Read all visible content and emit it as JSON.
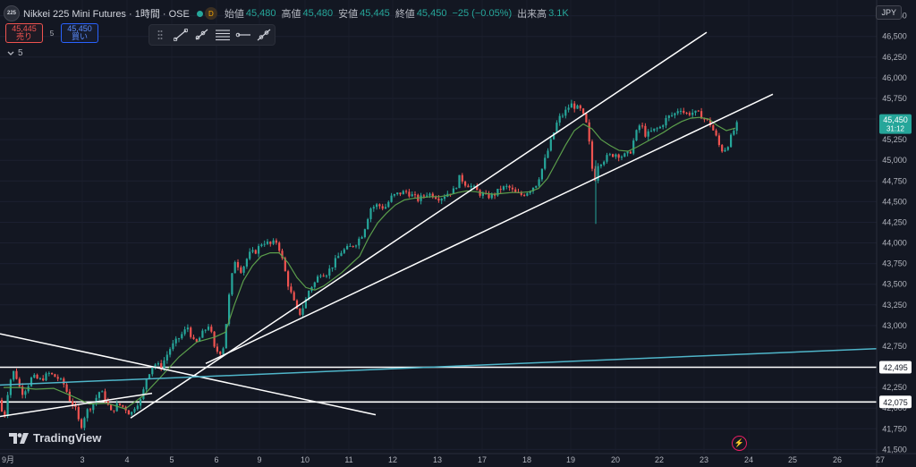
{
  "header": {
    "logo_text": "225",
    "title": "Nikkei 225 Mini Futures · 1時間 · OSE",
    "d_badge": "D",
    "open_label": "始値",
    "open_value": "45,480",
    "high_label": "高値",
    "high_value": "45,480",
    "low_label": "安値",
    "low_value": "45,445",
    "close_label": "終値",
    "close_value": "45,450",
    "change": "−25 (−0.05%)",
    "volume_label": "出来高",
    "volume_value": "3.1K"
  },
  "orders": {
    "sell_price": "45,445",
    "sell_label": "売り",
    "spread": "5",
    "buy_price": "45,450",
    "buy_label": "買い"
  },
  "indicators": {
    "toggle_icon": "chevron-down-icon",
    "count": "5"
  },
  "toolbar_icons": [
    "drag-handle-icon",
    "trend-line-icon",
    "ray-icon",
    "parallel-channel-icon",
    "horizontal-ray-icon",
    "extended-line-icon"
  ],
  "currency": "JPY",
  "brand": "TradingView",
  "colors": {
    "up": "#26a69a",
    "down": "#ef5350",
    "ma": "#5b9e4b",
    "trend": "#ffffff",
    "teal_line": "#4fb5c9",
    "background": "#131722"
  },
  "chart_data": {
    "type": "candlestick",
    "y_range": [
      41450,
      46800
    ],
    "y_ticks": [
      46750,
      46500,
      46250,
      46000,
      45750,
      45500,
      45250,
      45000,
      44750,
      44500,
      44250,
      44000,
      43750,
      43500,
      43250,
      43000,
      42750,
      42500,
      42250,
      42000,
      41750,
      41500
    ],
    "x_tick_labels": [
      "9月",
      "3",
      "4",
      "5",
      "6",
      "9",
      "10",
      "11",
      "12",
      "13",
      "17",
      "18",
      "19",
      "20",
      "22",
      "23",
      "24",
      "25",
      "26",
      "27"
    ],
    "last_price": {
      "label": "45,450",
      "countdown": "31:12",
      "value": 45450
    },
    "horizontal_levels": [
      {
        "label": "42,495",
        "value": 42495
      },
      {
        "label": "42,075",
        "value": 42075
      }
    ],
    "price_path": [
      [
        0,
        42100
      ],
      [
        4,
        41820
      ],
      [
        10,
        42300
      ],
      [
        16,
        42460
      ],
      [
        24,
        42180
      ],
      [
        30,
        42250
      ],
      [
        36,
        42380
      ],
      [
        45,
        42340
      ],
      [
        55,
        42420
      ],
      [
        65,
        42360
      ],
      [
        72,
        42280
      ],
      [
        78,
        42100
      ],
      [
        84,
        42000
      ],
      [
        90,
        41760
      ],
      [
        96,
        41950
      ],
      [
        104,
        42050
      ],
      [
        112,
        42220
      ],
      [
        118,
        42100
      ],
      [
        124,
        41950
      ],
      [
        132,
        42050
      ],
      [
        140,
        42000
      ],
      [
        146,
        41920
      ],
      [
        152,
        42050
      ],
      [
        158,
        42100
      ],
      [
        164,
        42380
      ],
      [
        172,
        42540
      ],
      [
        180,
        42500
      ],
      [
        190,
        42720
      ],
      [
        200,
        42850
      ],
      [
        210,
        42980
      ],
      [
        218,
        42760
      ],
      [
        226,
        42900
      ],
      [
        234,
        43020
      ],
      [
        240,
        42700
      ],
      [
        246,
        42680
      ],
      [
        250,
        42750
      ],
      [
        256,
        43350
      ],
      [
        262,
        43800
      ],
      [
        270,
        43660
      ],
      [
        278,
        43860
      ],
      [
        286,
        43900
      ],
      [
        294,
        44020
      ],
      [
        302,
        43980
      ],
      [
        310,
        44020
      ],
      [
        316,
        43780
      ],
      [
        322,
        43500
      ],
      [
        328,
        43300
      ],
      [
        334,
        43120
      ],
      [
        340,
        43250
      ],
      [
        346,
        43450
      ],
      [
        352,
        43520
      ],
      [
        358,
        43640
      ],
      [
        364,
        43620
      ],
      [
        370,
        43700
      ],
      [
        376,
        43800
      ],
      [
        382,
        43900
      ],
      [
        390,
        43940
      ],
      [
        398,
        44000
      ],
      [
        406,
        44120
      ],
      [
        414,
        44420
      ],
      [
        422,
        44460
      ],
      [
        430,
        44420
      ],
      [
        438,
        44560
      ],
      [
        446,
        44600
      ],
      [
        454,
        44620
      ],
      [
        460,
        44580
      ],
      [
        468,
        44520
      ],
      [
        476,
        44600
      ],
      [
        484,
        44580
      ],
      [
        492,
        44540
      ],
      [
        500,
        44600
      ],
      [
        508,
        44640
      ],
      [
        514,
        44800
      ],
      [
        520,
        44720
      ],
      [
        528,
        44680
      ],
      [
        536,
        44600
      ],
      [
        544,
        44560
      ],
      [
        552,
        44580
      ],
      [
        560,
        44660
      ],
      [
        568,
        44680
      ],
      [
        576,
        44600
      ],
      [
        584,
        44580
      ],
      [
        592,
        44640
      ],
      [
        600,
        44720
      ],
      [
        606,
        44900
      ],
      [
        612,
        45100
      ],
      [
        618,
        45300
      ],
      [
        624,
        45500
      ],
      [
        630,
        45560
      ],
      [
        638,
        45680
      ],
      [
        644,
        45640
      ],
      [
        650,
        45600
      ],
      [
        656,
        45420
      ],
      [
        660,
        45100
      ],
      [
        664,
        44700
      ],
      [
        668,
        44950
      ],
      [
        674,
        45000
      ],
      [
        680,
        45050
      ],
      [
        688,
        45080
      ],
      [
        696,
        45050
      ],
      [
        704,
        45080
      ],
      [
        710,
        45300
      ],
      [
        716,
        45450
      ],
      [
        722,
        45300
      ],
      [
        730,
        45360
      ],
      [
        738,
        45400
      ],
      [
        746,
        45520
      ],
      [
        754,
        45560
      ],
      [
        760,
        45640
      ],
      [
        766,
        45560
      ],
      [
        774,
        45580
      ],
      [
        782,
        45560
      ],
      [
        788,
        45500
      ],
      [
        794,
        45440
      ],
      [
        800,
        45300
      ],
      [
        806,
        45120
      ],
      [
        812,
        45150
      ],
      [
        818,
        45300
      ],
      [
        822,
        45400
      ],
      [
        825,
        45450
      ]
    ],
    "ma_path": [
      [
        4,
        42250
      ],
      [
        20,
        42250
      ],
      [
        40,
        42230
      ],
      [
        60,
        42240
      ],
      [
        80,
        42150
      ],
      [
        100,
        42050
      ],
      [
        120,
        42060
      ],
      [
        140,
        41990
      ],
      [
        160,
        42150
      ],
      [
        180,
        42380
      ],
      [
        200,
        42620
      ],
      [
        220,
        42800
      ],
      [
        240,
        42860
      ],
      [
        252,
        42920
      ],
      [
        262,
        43250
      ],
      [
        272,
        43540
      ],
      [
        282,
        43720
      ],
      [
        292,
        43840
      ],
      [
        302,
        43880
      ],
      [
        312,
        43880
      ],
      [
        322,
        43760
      ],
      [
        332,
        43580
      ],
      [
        342,
        43460
      ],
      [
        352,
        43430
      ],
      [
        362,
        43480
      ],
      [
        372,
        43560
      ],
      [
        382,
        43640
      ],
      [
        392,
        43740
      ],
      [
        402,
        43840
      ],
      [
        412,
        44060
      ],
      [
        422,
        44240
      ],
      [
        432,
        44360
      ],
      [
        442,
        44460
      ],
      [
        452,
        44520
      ],
      [
        462,
        44540
      ],
      [
        472,
        44550
      ],
      [
        482,
        44560
      ],
      [
        492,
        44560
      ],
      [
        502,
        44580
      ],
      [
        512,
        44610
      ],
      [
        522,
        44630
      ],
      [
        532,
        44620
      ],
      [
        542,
        44600
      ],
      [
        552,
        44590
      ],
      [
        562,
        44600
      ],
      [
        572,
        44610
      ],
      [
        582,
        44610
      ],
      [
        592,
        44620
      ],
      [
        602,
        44660
      ],
      [
        612,
        44780
      ],
      [
        622,
        44980
      ],
      [
        632,
        45180
      ],
      [
        642,
        45360
      ],
      [
        652,
        45440
      ],
      [
        662,
        45380
      ],
      [
        672,
        45250
      ],
      [
        682,
        45180
      ],
      [
        692,
        45120
      ],
      [
        702,
        45110
      ],
      [
        712,
        45160
      ],
      [
        722,
        45220
      ],
      [
        732,
        45280
      ],
      [
        742,
        45340
      ],
      [
        752,
        45410
      ],
      [
        762,
        45470
      ],
      [
        772,
        45510
      ],
      [
        782,
        45520
      ],
      [
        792,
        45500
      ],
      [
        802,
        45420
      ],
      [
        812,
        45360
      ],
      [
        822,
        45390
      ]
    ],
    "trend_lines": [
      {
        "from": [
          0,
          41900
        ],
        "to": [
          170,
          42180
        ]
      },
      {
        "from": [
          0,
          42900
        ],
        "to": [
          420,
          41920
        ]
      },
      {
        "from": [
          146,
          41880
        ],
        "to": [
          790,
          46550
        ]
      },
      {
        "from": [
          230,
          42540
        ],
        "to": [
          864,
          45800
        ]
      },
      {
        "from": [
          0,
          42280
        ],
        "to": [
          980,
          42720
        ],
        "color": "teal"
      }
    ]
  }
}
